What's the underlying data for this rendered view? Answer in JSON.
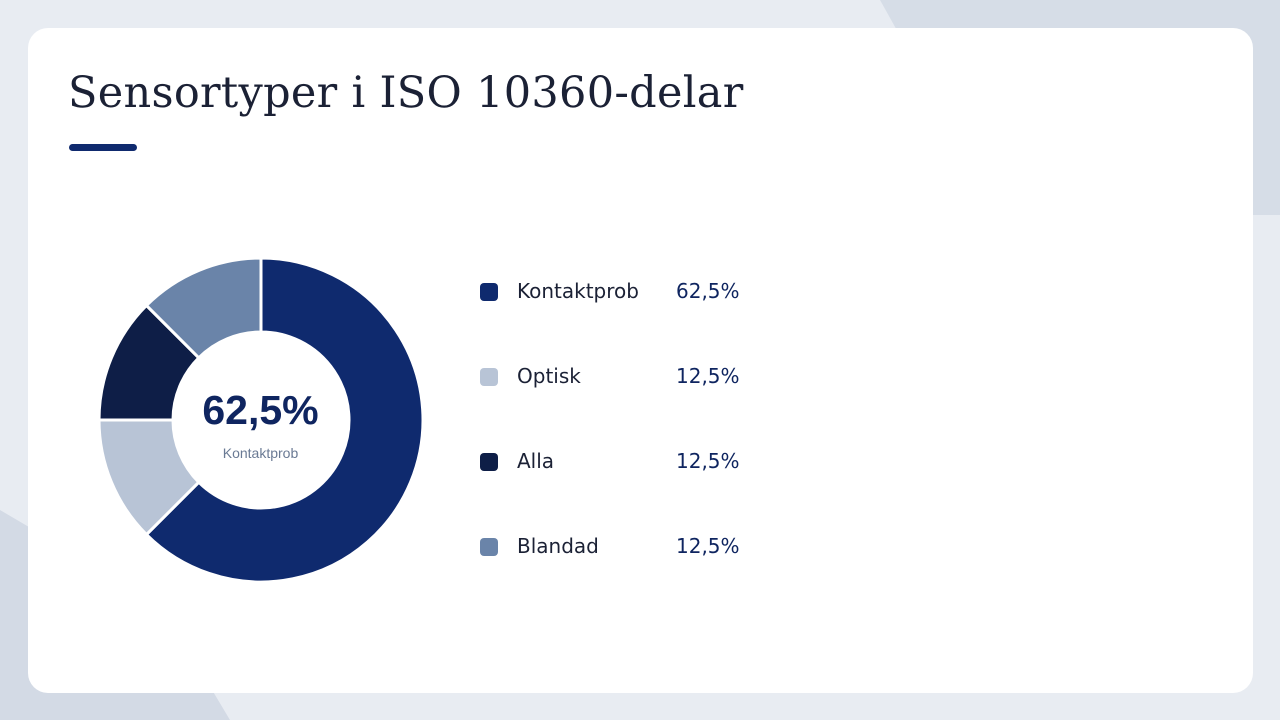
{
  "page": {
    "title": "Sensortyper i ISO 10360-delar"
  },
  "colors": {
    "accent": "#0f2a6e",
    "background": "#e8ecf2",
    "card": "#ffffff"
  },
  "chart_data": {
    "type": "pie",
    "subtype": "donut",
    "title": "Sensortyper i ISO 10360-delar",
    "center": {
      "value": "62,5%",
      "label": "Kontaktprob"
    },
    "legend_position": "right",
    "series": [
      {
        "label": "Kontaktprob",
        "value": 62.5,
        "display": "62,5%",
        "color": "#0f2a6e"
      },
      {
        "label": "Optisk",
        "value": 12.5,
        "display": "12,5%",
        "color": "#b8c4d6"
      },
      {
        "label": "Alla",
        "value": 12.5,
        "display": "12,5%",
        "color": "#0e1e47"
      },
      {
        "label": "Blandad",
        "value": 12.5,
        "display": "12,5%",
        "color": "#6a84a9"
      }
    ]
  }
}
